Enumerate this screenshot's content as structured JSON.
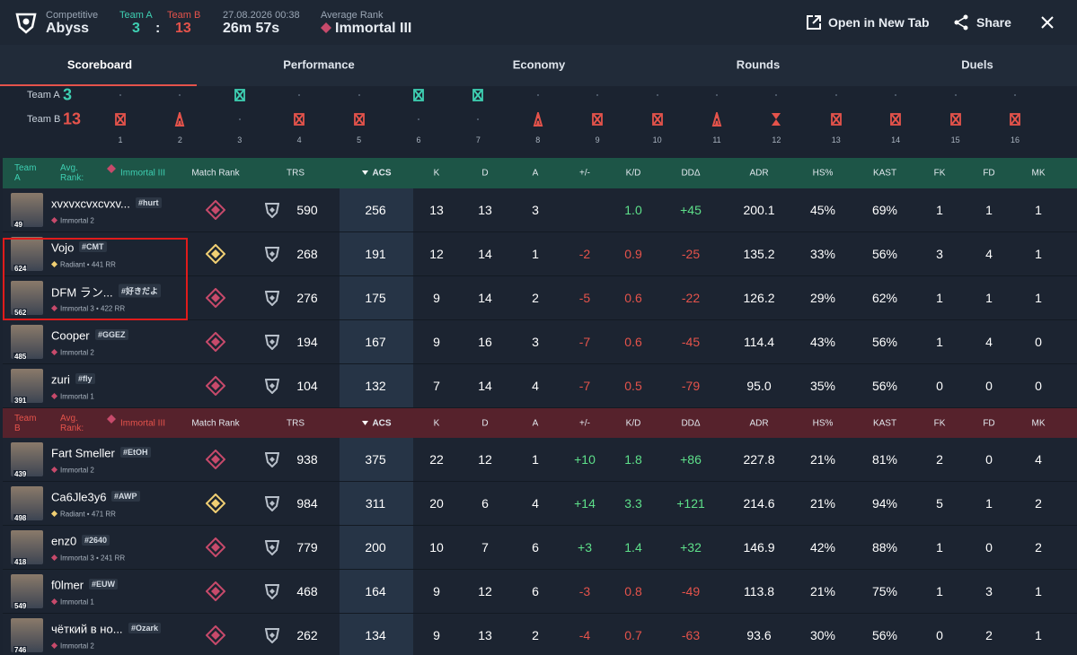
{
  "header": {
    "mode": "Competitive",
    "map": "Abyss",
    "team_a": {
      "label": "Team A",
      "score": "3"
    },
    "separator": ":",
    "team_b": {
      "label": "Team B",
      "score": "13"
    },
    "datetime": "27.08.2026 00:38",
    "duration": "26m 57s",
    "avg_rank_label": "Average Rank",
    "avg_rank": "Immortal III",
    "actions": [
      "Open in New Tab",
      "Share"
    ]
  },
  "tabs": {
    "items": [
      "Scoreboard",
      "Performance",
      "Economy",
      "Rounds",
      "Duels"
    ],
    "active": 0
  },
  "rounds": {
    "teams": [
      {
        "label": "Team A",
        "score": "3",
        "color": "#3ecfb2"
      },
      {
        "label": "Team B",
        "score": "13",
        "color": "#e5534b"
      }
    ],
    "list": [
      {
        "number": "1",
        "winner": 1,
        "outcome": "elimination"
      },
      {
        "number": "2",
        "winner": 1,
        "outcome": "detonate"
      },
      {
        "number": "3",
        "winner": 0,
        "outcome": "elimination"
      },
      {
        "number": "4",
        "winner": 1,
        "outcome": "elimination"
      },
      {
        "number": "5",
        "winner": 1,
        "outcome": "elimination"
      },
      {
        "number": "6",
        "winner": 0,
        "outcome": "elimination"
      },
      {
        "number": "7",
        "winner": 0,
        "outcome": "elimination"
      },
      {
        "number": "8",
        "winner": 1,
        "outcome": "detonate"
      },
      {
        "number": "9",
        "winner": 1,
        "outcome": "elimination"
      },
      {
        "number": "10",
        "winner": 1,
        "outcome": "elimination"
      },
      {
        "number": "11",
        "winner": 1,
        "outcome": "detonate"
      },
      {
        "number": "12",
        "winner": 1,
        "outcome": "time"
      },
      {
        "number": "13",
        "winner": 1,
        "outcome": "elimination"
      },
      {
        "number": "14",
        "winner": 1,
        "outcome": "elimination"
      },
      {
        "number": "15",
        "winner": 1,
        "outcome": "elimination"
      },
      {
        "number": "16",
        "winner": 1,
        "outcome": "elimination"
      }
    ]
  },
  "scoreboard": {
    "avg_rank_label": "Avg. Rank:",
    "columns": [
      "Match Rank",
      "TRS",
      "ACS",
      "K",
      "D",
      "A",
      "+/-",
      "K/D",
      "DDΔ",
      "ADR",
      "HS%",
      "KAST",
      "FK",
      "FD",
      "MK"
    ],
    "teams": [
      {
        "name": "Team A",
        "avg_rank": "Immortal III",
        "color": "#3ecfb2",
        "header_color": "#1d5547",
        "players": [
          {
            "name": "xvxvxcvxcvxv...",
            "tag": "#hurt",
            "rank": "Immortal 2",
            "level": "49",
            "cells": [
              "590",
              "256",
              "13",
              "13",
              "3",
              null,
              "1.0",
              "+45",
              "200.1",
              "45%",
              "69%",
              "1",
              "1",
              "1"
            ]
          },
          {
            "name": "Vojo",
            "tag": "#CMT",
            "rank": "Radiant • 441 RR",
            "level": "624",
            "cells": [
              "268",
              "191",
              "12",
              "14",
              "1",
              "-2",
              "0.9",
              "-25",
              "135.2",
              "33%",
              "56%",
              "3",
              "4",
              "1"
            ]
          },
          {
            "name": "DFM ラン...",
            "tag": "#好きだよ",
            "rank": "Immortal 3 • 422 RR",
            "level": "562",
            "cells": [
              "276",
              "175",
              "9",
              "14",
              "2",
              "-5",
              "0.6",
              "-22",
              "126.2",
              "29%",
              "62%",
              "1",
              "1",
              "1"
            ]
          },
          {
            "name": "Cooper",
            "tag": "#GGEZ",
            "rank": "Immortal 2",
            "level": "485",
            "cells": [
              "194",
              "167",
              "9",
              "16",
              "3",
              "-7",
              "0.6",
              "-45",
              "114.4",
              "43%",
              "56%",
              "1",
              "4",
              "0"
            ]
          },
          {
            "name": "zuri",
            "tag": "#fly",
            "rank": "Immortal 1",
            "level": "391",
            "cells": [
              "104",
              "132",
              "7",
              "14",
              "4",
              "-7",
              "0.5",
              "-79",
              "95.0",
              "35%",
              "56%",
              "0",
              "0",
              "0"
            ]
          }
        ]
      },
      {
        "name": "Team B",
        "avg_rank": "Immortal III",
        "color": "#e5534b",
        "header_color": "#56222c",
        "players": [
          {
            "name": "Fart Smeller",
            "tag": "#EtOH",
            "rank": "Immortal 2",
            "level": "439",
            "cells": [
              "938",
              "375",
              "22",
              "12",
              "1",
              "+10",
              "1.8",
              "+86",
              "227.8",
              "21%",
              "81%",
              "2",
              "0",
              "4"
            ]
          },
          {
            "name": "Ca6Jle3y6",
            "tag": "#AWP",
            "rank": "Radiant • 471 RR",
            "level": "498",
            "cells": [
              "984",
              "311",
              "20",
              "6",
              "4",
              "+14",
              "3.3",
              "+121",
              "214.6",
              "21%",
              "94%",
              "5",
              "1",
              "2"
            ]
          },
          {
            "name": "enz0",
            "tag": "#2640",
            "rank": "Immortal 3 • 241 RR",
            "level": "418",
            "cells": [
              "779",
              "200",
              "10",
              "7",
              "6",
              "+3",
              "1.4",
              "+32",
              "146.9",
              "42%",
              "88%",
              "1",
              "0",
              "2"
            ]
          },
          {
            "name": "f0lmer",
            "tag": "#EUW",
            "rank": "Immortal 1",
            "level": "549",
            "cells": [
              "468",
              "164",
              "9",
              "12",
              "6",
              "-3",
              "0.8",
              "-49",
              "113.8",
              "21%",
              "75%",
              "1",
              "3",
              "1"
            ]
          },
          {
            "name": "чёткий в но...",
            "tag": "#Ozark",
            "rank": "Immortal 2",
            "level": "746",
            "cells": [
              "262",
              "134",
              "9",
              "13",
              "2",
              "-4",
              "0.7",
              "-63",
              "93.6",
              "30%",
              "56%",
              "0",
              "2",
              "1"
            ]
          }
        ]
      }
    ]
  }
}
